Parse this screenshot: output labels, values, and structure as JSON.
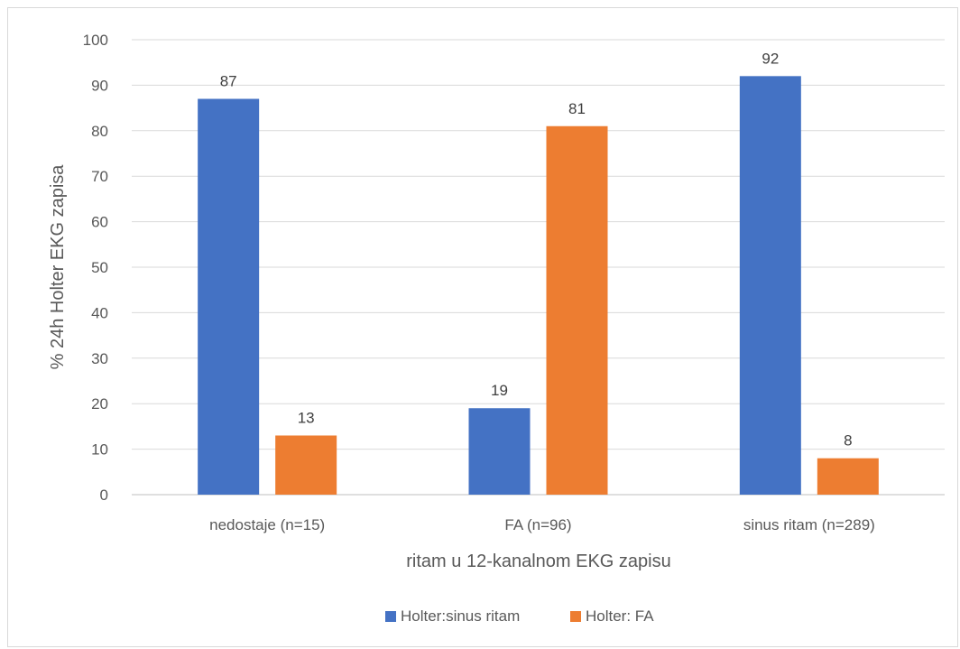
{
  "chart_data": {
    "type": "bar",
    "categories": [
      "nedostaje (n=15)",
      "FA (n=96)",
      "sinus ritam (n=289)"
    ],
    "series": [
      {
        "name": "Holter:sinus ritam",
        "values": [
          87,
          19,
          92
        ],
        "color": "#4472c4"
      },
      {
        "name": "Holter: FA",
        "values": [
          13,
          81,
          8
        ],
        "color": "#ed7d31"
      }
    ],
    "title": "",
    "xlabel": "ritam u 12-kanalnom EKG zapisu",
    "ylabel": "% 24h Holter EKG zapisa",
    "ylim": [
      0,
      100
    ],
    "yticks": [
      0,
      10,
      20,
      30,
      40,
      50,
      60,
      70,
      80,
      90,
      100
    ],
    "grid": true,
    "legend_position": "bottom"
  }
}
